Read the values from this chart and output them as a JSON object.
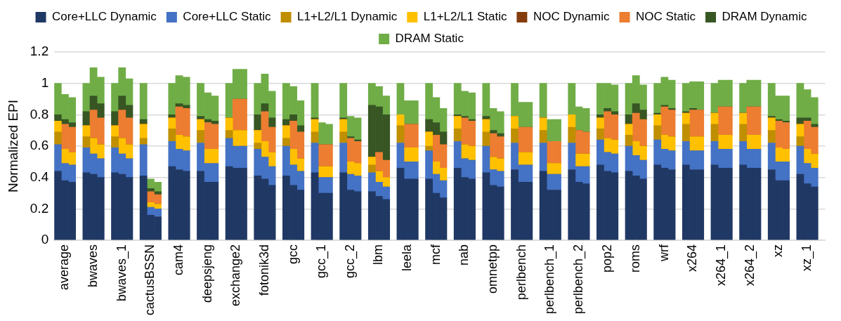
{
  "chart_data": {
    "type": "bar",
    "stacked": true,
    "ylabel": "Normalized EPI",
    "ylim": [
      0,
      1.2
    ],
    "yticks": [
      0,
      0.2,
      0.4,
      0.6,
      0.8,
      1,
      1.2
    ],
    "grid": "y",
    "legend": "top",
    "categories": [
      null,
      "average",
      null,
      null,
      null,
      "bwaves",
      null,
      null,
      null,
      "bwaves_1",
      null,
      null,
      null,
      "cactusBSSN",
      null,
      null,
      null,
      "cam4",
      null,
      null,
      null,
      "deepsjeng",
      null,
      null,
      null,
      "exchange2",
      null,
      null,
      null,
      "fotonik3d",
      null,
      null,
      null,
      "gcc",
      null,
      null,
      null,
      "gcc_1",
      null,
      null,
      null,
      "gcc_2",
      null,
      null,
      null,
      "lbm",
      null,
      null,
      null,
      "leela",
      null,
      null,
      null,
      "mcf",
      null,
      null,
      null,
      "nab",
      null,
      null,
      null,
      "omnetpp",
      null,
      null,
      null,
      "perlbench",
      null,
      null,
      null,
      "perlbench_1",
      null,
      null,
      null,
      "perlbench_2",
      null,
      null,
      null,
      "pop2",
      null,
      null,
      null,
      "roms",
      null,
      null,
      null,
      "wrf",
      null,
      null,
      null,
      "x264",
      null,
      null,
      null,
      "x264_1",
      null,
      null,
      null,
      "x264_2",
      null,
      null,
      null,
      "xz",
      null,
      null,
      null,
      "xz_1",
      null,
      null
    ],
    "series": [
      {
        "name": "Core+LLC Dynamic",
        "color": "#203864",
        "values": [
          0.44,
          0.38,
          0.37,
          null,
          0.43,
          0.42,
          0.4,
          null,
          0.43,
          0.42,
          0.4,
          null,
          0.41,
          0.16,
          0.15,
          null,
          0.47,
          0.45,
          0.44,
          null,
          0.44,
          0.37,
          0.37,
          null,
          0.47,
          0.46,
          0.46,
          null,
          0.41,
          0.39,
          0.35,
          null,
          0.41,
          0.35,
          0.32,
          null,
          0.43,
          0.3,
          0.3,
          null,
          0.43,
          0.32,
          0.31,
          null,
          0.31,
          0.28,
          0.26,
          null,
          0.46,
          0.39,
          0.39,
          null,
          0.39,
          0.3,
          0.27,
          null,
          0.46,
          0.4,
          0.39,
          null,
          0.43,
          0.35,
          0.34,
          null,
          0.45,
          0.37,
          0.37,
          null,
          0.44,
          0.32,
          0.32,
          null,
          0.45,
          0.37,
          0.36,
          null,
          0.48,
          0.44,
          0.43,
          null,
          0.44,
          0.41,
          0.39,
          null,
          0.48,
          0.46,
          0.45,
          null,
          0.48,
          0.45,
          0.45,
          null,
          0.48,
          0.46,
          0.46,
          null,
          0.48,
          0.46,
          0.46,
          null,
          0.45,
          0.38,
          0.38,
          null,
          0.42,
          0.36,
          0.34,
          null
        ]
      },
      {
        "name": "Core+LLC Static",
        "color": "#4472c4",
        "values": [
          0.17,
          0.11,
          0.11,
          null,
          0.16,
          0.13,
          0.12,
          null,
          0.16,
          0.13,
          0.12,
          null,
          0.2,
          0.05,
          0.05,
          null,
          0.16,
          0.13,
          0.13,
          null,
          0.18,
          0.12,
          0.12,
          null,
          0.18,
          0.14,
          0.14,
          null,
          0.17,
          0.14,
          0.12,
          null,
          0.19,
          0.13,
          0.12,
          null,
          0.19,
          0.1,
          0.1,
          null,
          0.19,
          0.1,
          0.1,
          null,
          0.12,
          0.09,
          0.08,
          null,
          0.16,
          0.11,
          0.11,
          null,
          0.18,
          0.12,
          0.11,
          null,
          0.17,
          0.12,
          0.12,
          null,
          0.17,
          0.1,
          0.1,
          null,
          0.17,
          0.11,
          0.11,
          null,
          0.18,
          0.1,
          0.1,
          null,
          0.17,
          0.1,
          0.11,
          null,
          0.16,
          0.12,
          0.12,
          null,
          0.16,
          0.13,
          0.12,
          null,
          0.16,
          0.12,
          0.12,
          null,
          0.15,
          0.12,
          0.12,
          null,
          0.15,
          0.12,
          0.12,
          null,
          0.15,
          0.12,
          0.12,
          null,
          0.17,
          0.12,
          0.12,
          null,
          0.18,
          0.13,
          0.12,
          null
        ]
      },
      {
        "name": "L1+L2/L1 Dynamic",
        "color": "#bf8f00",
        "values": [
          0.08,
          0,
          0,
          null,
          0.07,
          0,
          0,
          null,
          0.07,
          0,
          0,
          null,
          0.04,
          0,
          0,
          null,
          0.08,
          0,
          0,
          null,
          0.08,
          0,
          0,
          null,
          0.05,
          0,
          0,
          null,
          0.04,
          0,
          0,
          null,
          0.05,
          0,
          0,
          null,
          0.07,
          0,
          0,
          null,
          0.07,
          0,
          0,
          null,
          0.05,
          0,
          0,
          null,
          0.11,
          0,
          0,
          null,
          0.03,
          0,
          0,
          null,
          0.08,
          0,
          0,
          null,
          0.09,
          0,
          0,
          null,
          0.09,
          0,
          0,
          null,
          0.08,
          0,
          0,
          null,
          0.1,
          0,
          0,
          null,
          0.07,
          0,
          0,
          null,
          0.07,
          0,
          0,
          null,
          0.09,
          0,
          0,
          null,
          0.11,
          0,
          0,
          null,
          0.11,
          0,
          0,
          null,
          0.11,
          0,
          0,
          null,
          0.08,
          0,
          0,
          null,
          0.06,
          0,
          0,
          null
        ]
      },
      {
        "name": "L1+L2/L1 Static",
        "color": "#ffc000",
        "values": [
          0.07,
          0.09,
          0.08,
          null,
          0.07,
          0.1,
          0.09,
          null,
          0.07,
          0.1,
          0.09,
          null,
          0.09,
          0.03,
          0.03,
          null,
          0.07,
          0.09,
          0.09,
          null,
          0.07,
          0.09,
          0.09,
          null,
          0.08,
          0.1,
          0.1,
          null,
          0.08,
          0.1,
          0.09,
          null,
          0.08,
          0.1,
          0.08,
          null,
          0.08,
          0.07,
          0.07,
          null,
          0.08,
          0.08,
          0.08,
          null,
          0.05,
          0.07,
          0.06,
          null,
          0.07,
          0.09,
          0.09,
          null,
          0.09,
          0.08,
          0.08,
          null,
          0.08,
          0.09,
          0.09,
          null,
          0.08,
          0.08,
          0.08,
          null,
          0.08,
          0.08,
          0.08,
          null,
          0.08,
          0.07,
          0.07,
          null,
          0.08,
          0.08,
          0.08,
          null,
          0.07,
          0.09,
          0.09,
          null,
          0.07,
          0.09,
          0.09,
          null,
          0.07,
          0.09,
          0.09,
          null,
          0.07,
          0.09,
          0.09,
          null,
          0.07,
          0.09,
          0.09,
          null,
          0.07,
          0.09,
          0.09,
          null,
          0.08,
          0.09,
          0.08,
          null,
          0.08,
          0.09,
          0.09,
          null
        ]
      },
      {
        "name": "NOC Dynamic",
        "color": "#843c0c",
        "values": [
          0,
          0,
          0,
          null,
          0,
          0,
          0,
          null,
          0,
          0,
          0,
          null,
          0,
          0,
          0,
          null,
          0,
          0,
          0,
          null,
          0,
          0,
          0,
          null,
          0,
          0,
          0,
          null,
          0,
          0,
          0,
          null,
          0,
          0,
          0,
          null,
          0,
          0,
          0,
          null,
          0,
          0,
          0,
          null,
          0,
          0,
          0,
          null,
          0,
          0,
          0,
          null,
          0,
          0,
          0,
          null,
          0,
          0,
          0,
          null,
          0,
          0,
          0,
          null,
          0,
          0,
          0,
          null,
          0,
          0,
          0,
          null,
          0,
          0,
          0,
          null,
          0,
          0,
          0,
          null,
          0,
          0,
          0,
          null,
          0,
          0,
          0,
          null,
          0,
          0,
          0,
          null,
          0,
          0,
          0,
          null,
          0,
          0,
          0,
          null,
          0,
          0,
          0,
          null,
          0,
          0,
          0,
          null
        ]
      },
      {
        "name": "NOC Static",
        "color": "#ed7d31",
        "values": [
          0,
          0.16,
          0.16,
          null,
          0,
          0.18,
          0.17,
          null,
          0,
          0.18,
          0.17,
          null,
          0,
          0.07,
          0.06,
          null,
          0,
          0.18,
          0.18,
          null,
          0,
          0.17,
          0.16,
          null,
          0,
          0.2,
          0.2,
          null,
          0,
          0.19,
          0.16,
          null,
          0,
          0.18,
          0.17,
          null,
          0,
          0.14,
          0.14,
          null,
          0,
          0.15,
          0.14,
          null,
          0,
          0.12,
          0.11,
          null,
          0,
          0.15,
          0.15,
          null,
          0,
          0.17,
          0.15,
          null,
          0,
          0.17,
          0.16,
          null,
          0,
          0.15,
          0.14,
          null,
          0,
          0.16,
          0.16,
          null,
          0,
          0.14,
          0.14,
          null,
          0,
          0.15,
          0.14,
          null,
          0,
          0.17,
          0.16,
          null,
          0,
          0.18,
          0.17,
          null,
          0,
          0.18,
          0.17,
          null,
          0,
          0.17,
          0.17,
          null,
          0,
          0.18,
          0.18,
          null,
          0,
          0.18,
          0.18,
          null,
          0,
          0.17,
          0.17,
          null,
          0,
          0.18,
          0.17,
          null
        ]
      },
      {
        "name": "DRAM Dynamic",
        "color": "#375623",
        "values": [
          0.04,
          0.03,
          0.03,
          null,
          0.09,
          0.09,
          0.09,
          null,
          0.09,
          0.09,
          0.08,
          null,
          0.03,
          0.02,
          0.02,
          null,
          0.02,
          0.02,
          0.02,
          null,
          0.02,
          0.02,
          0.02,
          null,
          0,
          0,
          0,
          null,
          0.1,
          0.05,
          0.06,
          null,
          0.04,
          0.04,
          0.04,
          null,
          0.01,
          0,
          0,
          null,
          0.01,
          0.01,
          0.01,
          null,
          0.33,
          0.29,
          0.29,
          null,
          0,
          0,
          0,
          null,
          0.08,
          0.08,
          0.08,
          null,
          0.01,
          0.01,
          0.01,
          null,
          0.02,
          0.02,
          0.02,
          null,
          0,
          0,
          0,
          null,
          0,
          0,
          0,
          null,
          0,
          0,
          0,
          null,
          0.02,
          0.02,
          0.02,
          null,
          0.06,
          0.06,
          0.06,
          null,
          0.01,
          0.01,
          0.01,
          null,
          0.01,
          0.01,
          0,
          null,
          0,
          0,
          0,
          null,
          0,
          0,
          0,
          null,
          0.01,
          0.01,
          0.01,
          null,
          0.04,
          0.02,
          0.02,
          null
        ]
      },
      {
        "name": "DRAM Static",
        "color": "#70ad47",
        "values": [
          0.2,
          0.16,
          0.16,
          null,
          0.18,
          0.18,
          0.17,
          null,
          0.18,
          0.18,
          0.17,
          null,
          0.23,
          0.06,
          0.06,
          null,
          0.2,
          0.18,
          0.18,
          null,
          0.21,
          0.17,
          0.16,
          null,
          0.22,
          0.19,
          0.19,
          null,
          0.2,
          0.19,
          0.17,
          null,
          0.23,
          0.18,
          0.16,
          null,
          0.22,
          0.14,
          0.13,
          null,
          0.22,
          0.13,
          0.14,
          null,
          0.14,
          0.13,
          0.12,
          null,
          0.2,
          0.15,
          0.15,
          null,
          0.23,
          0.16,
          0.15,
          null,
          0.2,
          0.16,
          0.17,
          null,
          0.21,
          0.14,
          0.14,
          null,
          0.21,
          0.16,
          0.16,
          null,
          0.22,
          0.14,
          0.14,
          null,
          0.2,
          0.15,
          0.15,
          null,
          0.2,
          0.16,
          0.17,
          null,
          0.2,
          0.18,
          0.16,
          null,
          0.19,
          0.18,
          0.18,
          null,
          0.18,
          0.17,
          0.18,
          null,
          0.19,
          0.17,
          0.17,
          null,
          0.19,
          0.17,
          0.17,
          null,
          0.21,
          0.15,
          0.16,
          null,
          0.22,
          0.18,
          0.17,
          null
        ]
      }
    ]
  }
}
